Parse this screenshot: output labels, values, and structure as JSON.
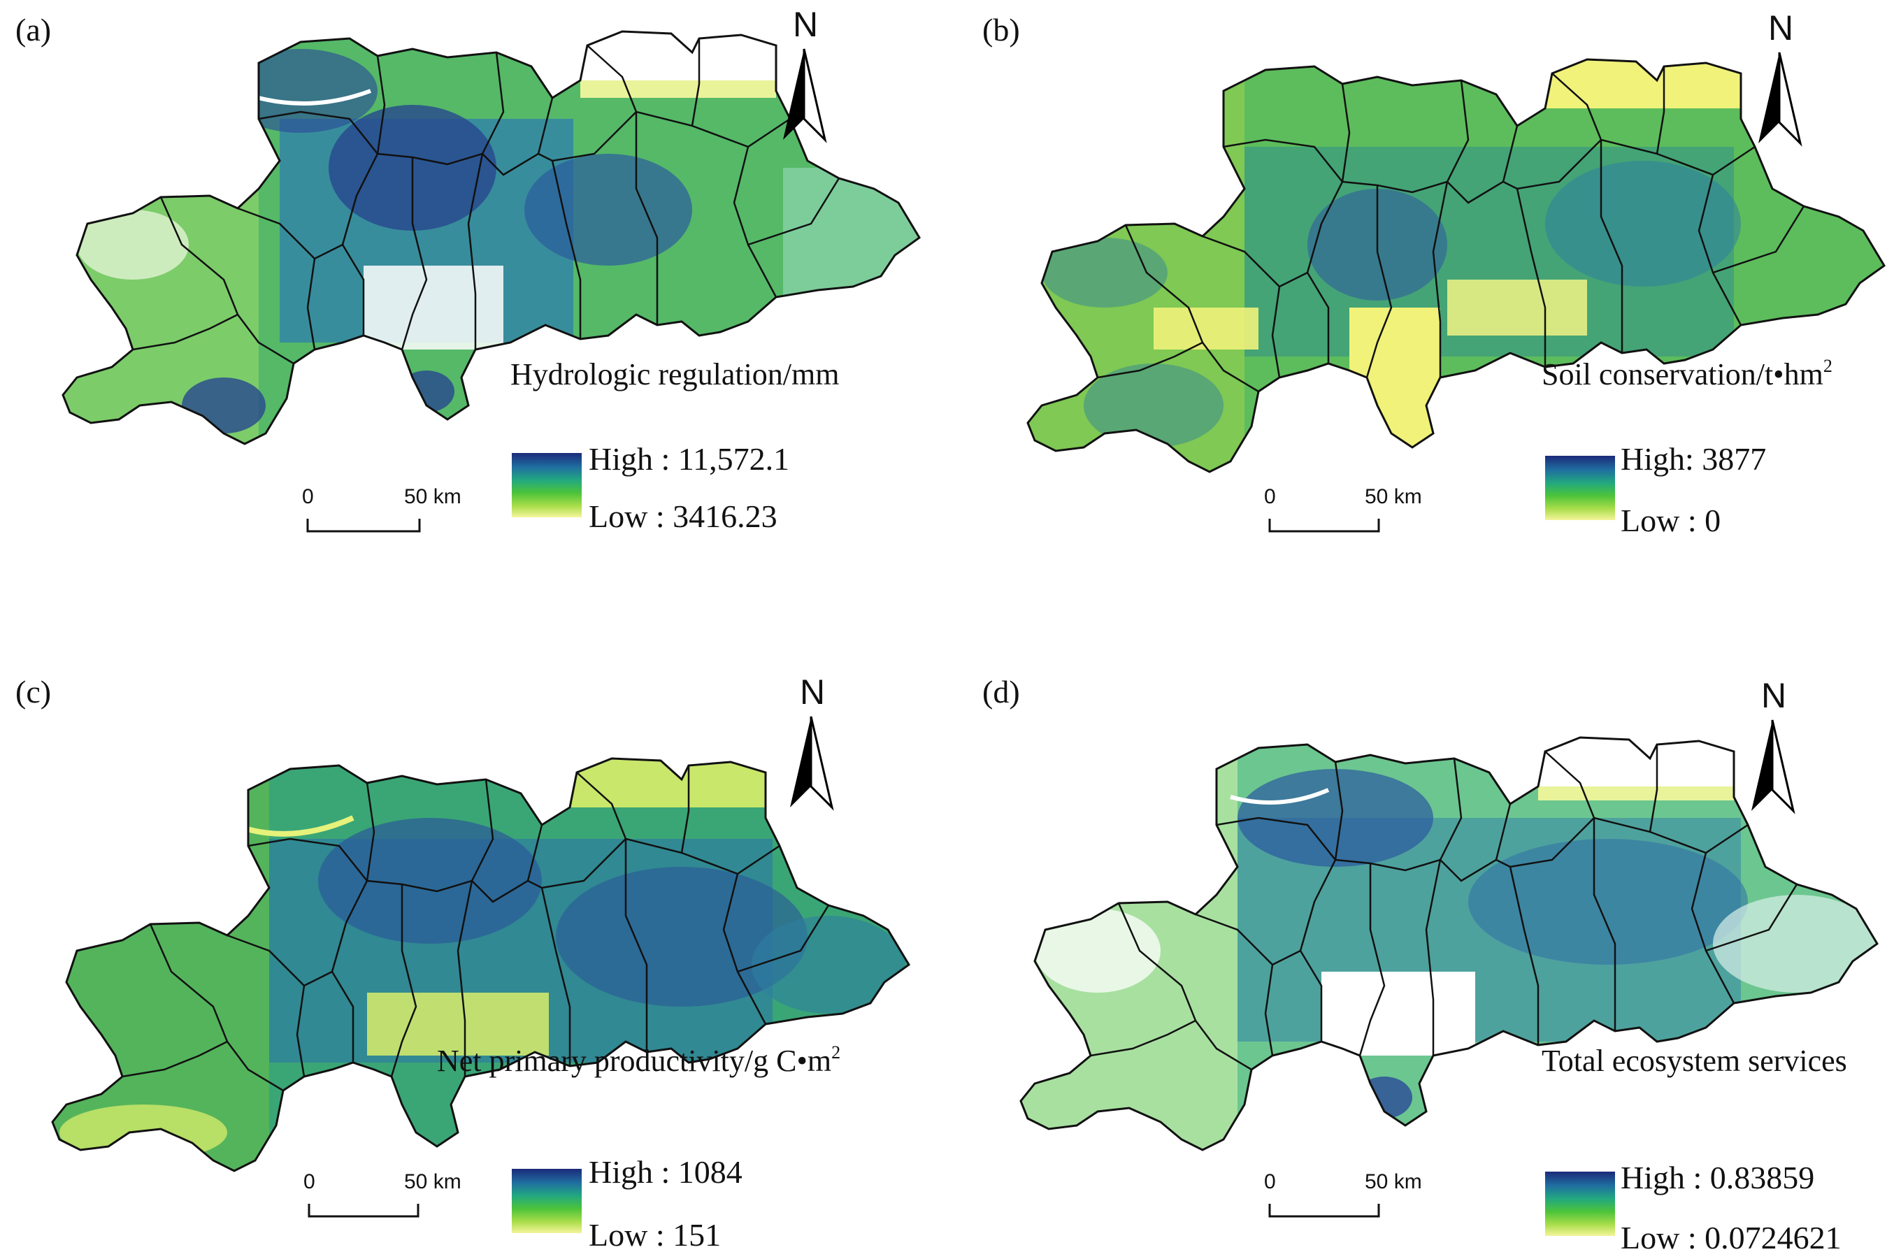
{
  "panels": [
    {
      "label": "(a)",
      "title": "Hydrologic regulation/mm",
      "title_sup": "",
      "legend_high": "High : 11,572.1",
      "legend_low": "Low : 3416.23",
      "scale_zero": "0",
      "scale_dist": "50 km",
      "north": "N",
      "ramp": [
        "#1c2a7a",
        "#1f6fa0",
        "#22a880",
        "#4cc33a",
        "#a8dd4a",
        "#f4f59a"
      ]
    },
    {
      "label": "(b)",
      "title": "Soil conservation/t•hm",
      "title_sup": "2",
      "legend_high": "High: 3877",
      "legend_low": "Low : 0",
      "scale_zero": "0",
      "scale_dist": "50 km",
      "north": "N",
      "ramp": [
        "#1c2a7a",
        "#1f6fa0",
        "#22a880",
        "#4cc33a",
        "#a8dd4a",
        "#f4f59a"
      ]
    },
    {
      "label": "(c)",
      "title": "Net primary productivity/g C•m",
      "title_sup": "2",
      "legend_high": "High : 1084",
      "legend_low": "Low : 151",
      "scale_zero": "0",
      "scale_dist": "50 km",
      "north": "N",
      "ramp": [
        "#1c2a7a",
        "#1f6fa0",
        "#22a880",
        "#4cc33a",
        "#a8dd4a",
        "#f4f59a"
      ]
    },
    {
      "label": "(d)",
      "title": "Total ecosystem services",
      "title_sup": "",
      "legend_high": "High : 0.83859",
      "legend_low": "Low : 0.0724621",
      "scale_zero": "0",
      "scale_dist": "50 km",
      "north": "N",
      "ramp": [
        "#1c2a7a",
        "#1f6fa0",
        "#22a880",
        "#4cc33a",
        "#a8dd4a",
        "#f4f59a"
      ]
    }
  ],
  "map_fills": {
    "a": [
      "#2e9a7e",
      "#5cc15a",
      "#2f4f9a",
      "#3a7fae",
      "#8bd06a"
    ],
    "b": [
      "#5fbf5a",
      "#3a9a7e",
      "#8fd05a",
      "#2f6f9e",
      "#f0f27a"
    ],
    "c": [
      "#2f8aa0",
      "#3fae72",
      "#2a5f9a",
      "#6cc248",
      "#d8ee6a"
    ],
    "d": [
      "#3fae8a",
      "#7fd07a",
      "#2f6fa0",
      "#bfe8b8",
      "#ffffff"
    ]
  }
}
